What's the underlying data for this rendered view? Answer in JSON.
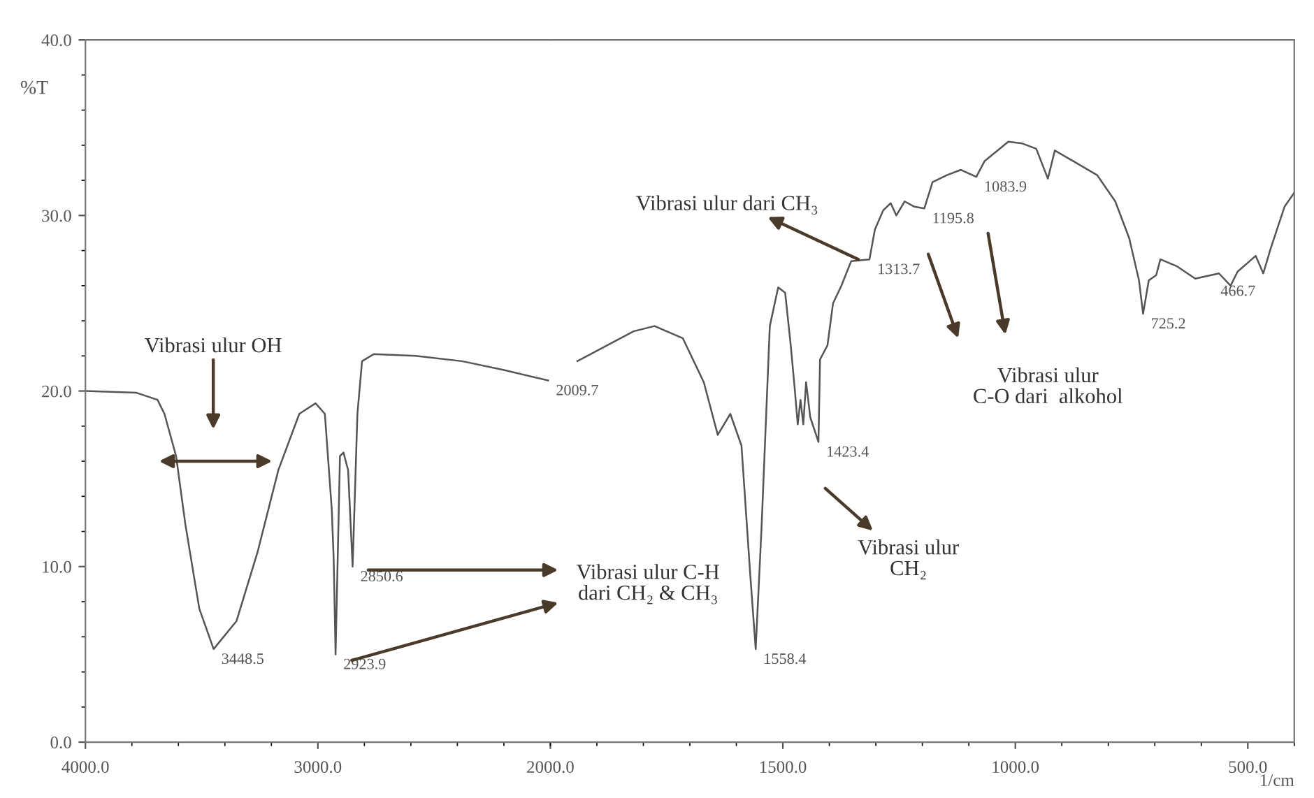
{
  "chart_data": [
    {
      "type": "line",
      "ylabel": "%T",
      "xlim": [
        4000,
        2000
      ],
      "ylim": [
        0,
        40
      ],
      "xticks": [
        {
          "value": 4000,
          "label": "4000.0"
        },
        {
          "value": 3000,
          "label": "3000.0"
        },
        {
          "value": 2000,
          "label": "2000.0"
        }
      ],
      "yticks": [
        {
          "value": 0,
          "label": "0.0"
        },
        {
          "value": 10,
          "label": "10.0"
        },
        {
          "value": 20,
          "label": "20.0"
        },
        {
          "value": 30,
          "label": "30.0"
        },
        {
          "value": 40,
          "label": "40.0"
        }
      ],
      "grid": false,
      "legend": false,
      "marker": "none",
      "line_style": "solid",
      "series": [
        {
          "color": "#555555",
          "x": [
            4000,
            3780,
            3690,
            3660,
            3610,
            3570,
            3510,
            3448.5,
            3350,
            3260,
            3170,
            3080,
            3010,
            2970,
            2940,
            2932,
            2923.9,
            2905,
            2890,
            2870,
            2850.6,
            2830,
            2810,
            2760,
            2580,
            2380,
            2200,
            2009.7
          ],
          "values": [
            20.0,
            19.9,
            19.5,
            18.7,
            16.3,
            12.4,
            7.6,
            5.3,
            6.9,
            10.8,
            15.5,
            18.7,
            19.3,
            18.7,
            13.2,
            10.4,
            5.0,
            16.3,
            16.5,
            15.5,
            10.0,
            18.7,
            21.7,
            22.1,
            22.0,
            21.7,
            21.2,
            20.6
          ]
        }
      ],
      "annotations": [
        {
          "text": "3448.5",
          "x": 3448.5,
          "y": 5.3
        },
        {
          "text": "2923.9",
          "x": 2923.9,
          "y": 5.0
        },
        {
          "text": "2850.6",
          "x": 2850.6,
          "y": 10.0
        },
        {
          "text": "2009.7",
          "x": 2009.7,
          "y": 20.6
        },
        "Vibrasi ulur OH",
        "Vibrasi ulur C-H\ndari CH₂ & CH₃"
      ]
    },
    {
      "type": "line",
      "xlabel": "1/cm",
      "xlim": [
        2000,
        400
      ],
      "ylim": [
        0,
        40
      ],
      "tick_labels": "x",
      "xticks": [
        {
          "value": 1500,
          "label": "1500.0"
        },
        {
          "value": 1000,
          "label": "1000.0"
        },
        {
          "value": 500,
          "label": "500.0"
        }
      ],
      "grid": false,
      "legend": false,
      "marker": "none",
      "line_style": "solid",
      "series": [
        {
          "color": "#555555",
          "x": [
            1942,
            1821,
            1776,
            1715,
            1670,
            1640,
            1613,
            1589,
            1570,
            1558.4,
            1546,
            1528,
            1510,
            1495,
            1483,
            1474,
            1468,
            1462,
            1456,
            1450,
            1441,
            1423.4,
            1420,
            1404,
            1392,
            1374,
            1353,
            1313.7,
            1302,
            1284,
            1268,
            1256,
            1238,
            1217,
            1195.8,
            1178,
            1147,
            1117,
            1083.9,
            1066,
            1015,
            985,
            955,
            930,
            915,
            876,
            824,
            785,
            755,
            734,
            725.2,
            713,
            697,
            688,
            652,
            613,
            562,
            537,
            522,
            483,
            466.7,
            451,
            421,
            400
          ],
          "values": [
            21.7,
            23.4,
            23.7,
            23.0,
            20.5,
            17.5,
            18.7,
            16.9,
            9.5,
            5.3,
            12.1,
            23.7,
            25.9,
            25.6,
            22.6,
            20.0,
            18.1,
            19.5,
            18.1,
            20.5,
            18.5,
            17.1,
            21.8,
            22.6,
            25.0,
            26.0,
            27.4,
            27.5,
            29.2,
            30.3,
            30.7,
            30.0,
            30.8,
            30.5,
            30.4,
            31.9,
            32.3,
            32.6,
            32.2,
            33.1,
            34.2,
            34.1,
            33.8,
            32.1,
            33.7,
            33.1,
            32.3,
            30.8,
            28.7,
            26.3,
            24.4,
            26.3,
            26.6,
            27.5,
            27.1,
            26.4,
            26.7,
            26.0,
            26.8,
            27.7,
            26.7,
            28.1,
            30.5,
            31.3
          ]
        }
      ],
      "annotations": [
        {
          "text": "1558.4",
          "x": 1558.4,
          "y": 5.3
        },
        {
          "text": "1423.4",
          "x": 1423.4,
          "y": 17.1
        },
        {
          "text": "1313.7",
          "x": 1313.7,
          "y": 27.5
        },
        {
          "text": "1195.8",
          "x": 1195.8,
          "y": 30.4
        },
        {
          "text": "1083.9",
          "x": 1083.9,
          "y": 32.2
        },
        {
          "text": "725.2",
          "x": 725.2,
          "y": 24.4
        },
        {
          "text": "466.7",
          "x": 466.7,
          "y": 26.7
        },
        "Vibrasi ulur dari CH₃",
        "Vibrasi ulur\nCH₂",
        "Vibrasi ulur\nC-O dari  alkohol"
      ]
    }
  ]
}
